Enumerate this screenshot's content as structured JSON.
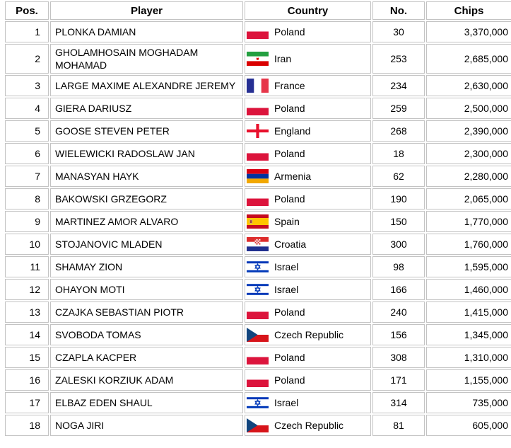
{
  "table": {
    "columns": [
      {
        "key": "pos",
        "label": "Pos."
      },
      {
        "key": "player",
        "label": "Player"
      },
      {
        "key": "country",
        "label": "Country"
      },
      {
        "key": "no",
        "label": "No."
      },
      {
        "key": "chips",
        "label": "Chips"
      }
    ],
    "rows": [
      {
        "pos": "1",
        "player": "PLONKA DAMIAN",
        "country": "Poland",
        "flag": "poland",
        "no": "30",
        "chips": "3,370,000"
      },
      {
        "pos": "2",
        "player": "GHOLAMHOSAIN MOGHADAM MOHAMAD",
        "country": "Iran",
        "flag": "iran",
        "no": "253",
        "chips": "2,685,000"
      },
      {
        "pos": "3",
        "player": "LARGE MAXIME ALEXANDRE JEREMY",
        "country": "France",
        "flag": "france",
        "no": "234",
        "chips": "2,630,000"
      },
      {
        "pos": "4",
        "player": "GIERA DARIUSZ",
        "country": "Poland",
        "flag": "poland",
        "no": "259",
        "chips": "2,500,000"
      },
      {
        "pos": "5",
        "player": "GOOSE STEVEN PETER",
        "country": "England",
        "flag": "england",
        "no": "268",
        "chips": "2,390,000"
      },
      {
        "pos": "6",
        "player": "WIELEWICKI RADOSLAW JAN",
        "country": "Poland",
        "flag": "poland",
        "no": "18",
        "chips": "2,300,000"
      },
      {
        "pos": "7",
        "player": "MANASYAN HAYK",
        "country": "Armenia",
        "flag": "armenia",
        "no": "62",
        "chips": "2,280,000"
      },
      {
        "pos": "8",
        "player": "BAKOWSKI GRZEGORZ",
        "country": "Poland",
        "flag": "poland",
        "no": "190",
        "chips": "2,065,000"
      },
      {
        "pos": "9",
        "player": "MARTINEZ AMOR ALVARO",
        "country": "Spain",
        "flag": "spain",
        "no": "150",
        "chips": "1,770,000"
      },
      {
        "pos": "10",
        "player": "STOJANOVIC MLADEN",
        "country": "Croatia",
        "flag": "croatia",
        "no": "300",
        "chips": "1,760,000"
      },
      {
        "pos": "11",
        "player": "SHAMAY ZION",
        "country": "Israel",
        "flag": "israel",
        "no": "98",
        "chips": "1,595,000"
      },
      {
        "pos": "12",
        "player": "OHAYON MOTI",
        "country": "Israel",
        "flag": "israel",
        "no": "166",
        "chips": "1,460,000"
      },
      {
        "pos": "13",
        "player": "CZAJKA SEBASTIAN PIOTR",
        "country": "Poland",
        "flag": "poland",
        "no": "240",
        "chips": "1,415,000"
      },
      {
        "pos": "14",
        "player": "SVOBODA TOMAS",
        "country": "Czech Republic",
        "flag": "czech-republic",
        "no": "156",
        "chips": "1,345,000"
      },
      {
        "pos": "15",
        "player": "CZAPLA KACPER",
        "country": "Poland",
        "flag": "poland",
        "no": "308",
        "chips": "1,310,000"
      },
      {
        "pos": "16",
        "player": "ZALESKI KORZIUK ADAM",
        "country": "Poland",
        "flag": "poland",
        "no": "171",
        "chips": "1,155,000"
      },
      {
        "pos": "17",
        "player": "ELBAZ EDEN SHAUL",
        "country": "Israel",
        "flag": "israel",
        "no": "314",
        "chips": "735,000"
      },
      {
        "pos": "18",
        "player": "NOGA JIRI",
        "country": "Czech Republic",
        "flag": "czech-republic",
        "no": "81",
        "chips": "605,000"
      }
    ]
  },
  "colors": {
    "cell_border": "#c3c3c3",
    "text": "#000000",
    "background": "#ffffff"
  },
  "flag_colors": {
    "poland_red": "#DC143C",
    "iran_green": "#239F40",
    "iran_red": "#DA0000",
    "france_blue": "#262F93",
    "france_red": "#E6364A",
    "england_red": "#E8112D",
    "armenia_red": "#D90012",
    "armenia_blue": "#0033A0",
    "armenia_orange": "#F2A800",
    "spain_red": "#C60B1E",
    "spain_yellow": "#FFC400",
    "croatia_red": "#DD2C2C",
    "croatia_blue": "#202F8F",
    "israel_blue": "#0038B8",
    "czech_blue": "#11457E",
    "czech_red": "#D7141A"
  },
  "chart_data": {
    "type": "table",
    "title": "Chip count standings",
    "columns": [
      "Pos.",
      "Player",
      "Country",
      "No.",
      "Chips"
    ],
    "rows": [
      [
        1,
        "PLONKA DAMIAN",
        "Poland",
        30,
        3370000
      ],
      [
        2,
        "GHOLAMHOSAIN MOGHADAM MOHAMAD",
        "Iran",
        253,
        2685000
      ],
      [
        3,
        "LARGE MAXIME ALEXANDRE JEREMY",
        "France",
        234,
        2630000
      ],
      [
        4,
        "GIERA DARIUSZ",
        "Poland",
        259,
        2500000
      ],
      [
        5,
        "GOOSE STEVEN PETER",
        "England",
        268,
        2390000
      ],
      [
        6,
        "WIELEWICKI RADOSLAW JAN",
        "Poland",
        18,
        2300000
      ],
      [
        7,
        "MANASYAN HAYK",
        "Armenia",
        62,
        2280000
      ],
      [
        8,
        "BAKOWSKI GRZEGORZ",
        "Poland",
        190,
        2065000
      ],
      [
        9,
        "MARTINEZ AMOR ALVARO",
        "Spain",
        150,
        1770000
      ],
      [
        10,
        "STOJANOVIC MLADEN",
        "Croatia",
        300,
        1760000
      ],
      [
        11,
        "SHAMAY ZION",
        "Israel",
        98,
        1595000
      ],
      [
        12,
        "OHAYON MOTI",
        "Israel",
        166,
        1460000
      ],
      [
        13,
        "CZAJKA SEBASTIAN PIOTR",
        "Poland",
        240,
        1415000
      ],
      [
        14,
        "SVOBODA TOMAS",
        "Czech Republic",
        156,
        1345000
      ],
      [
        15,
        "CZAPLA KACPER",
        "Poland",
        308,
        1310000
      ],
      [
        16,
        "ZALESKI KORZIUK ADAM",
        "Poland",
        171,
        1155000
      ],
      [
        17,
        "ELBAZ EDEN SHAUL",
        "Israel",
        314,
        735000
      ],
      [
        18,
        "NOGA JIRI",
        "Czech Republic",
        81,
        605000
      ]
    ]
  }
}
